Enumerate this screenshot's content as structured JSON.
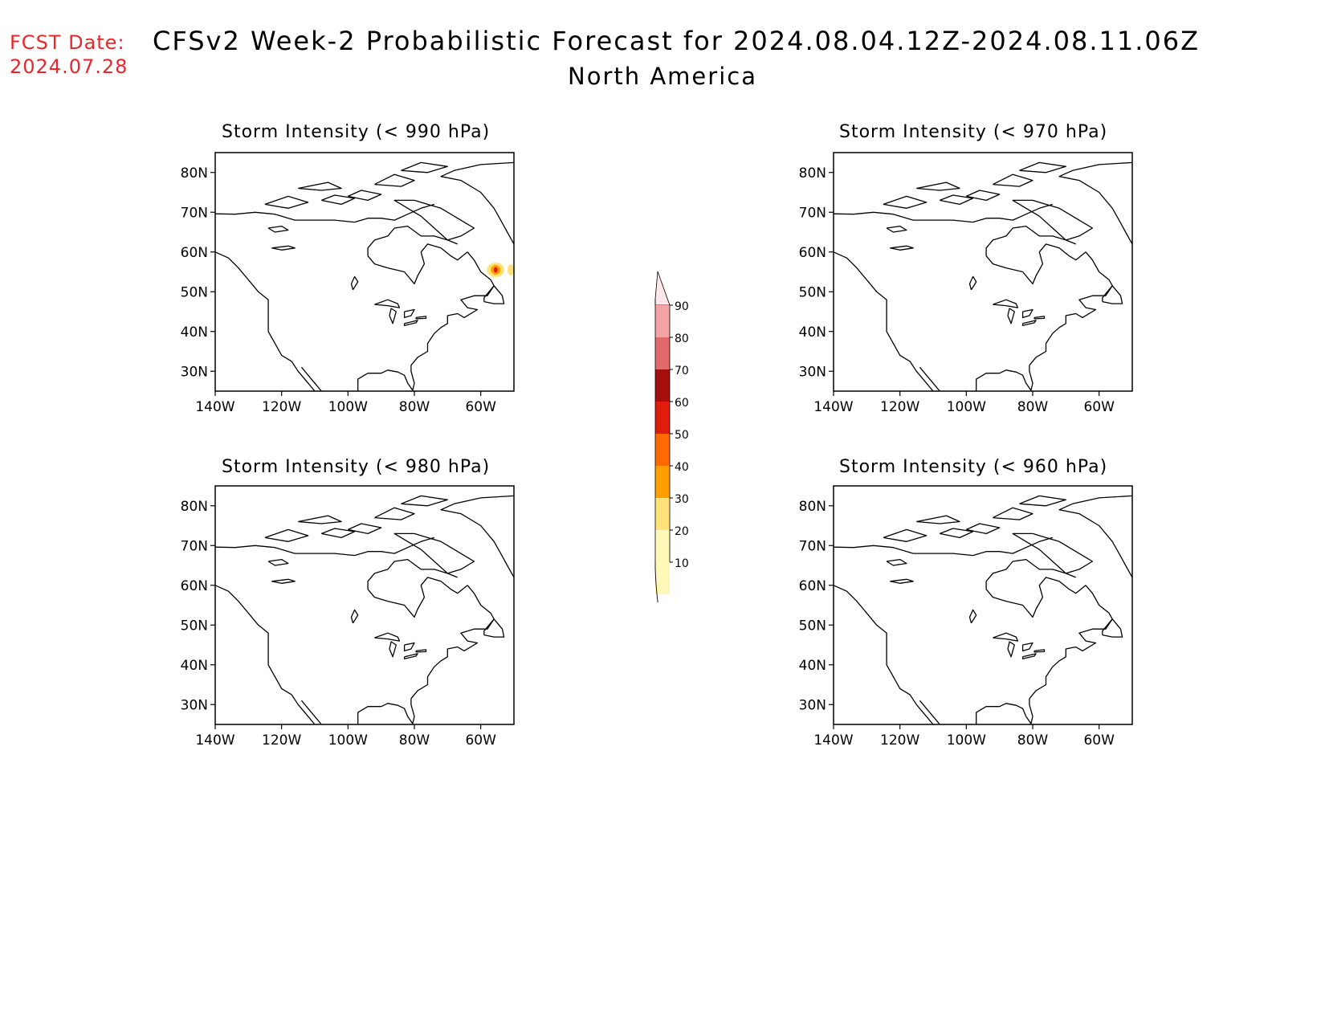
{
  "header": {
    "fcst_label": "FCST Date:",
    "fcst_date": "2024.07.28",
    "title": "CFSv2 Week-2 Probabilistic Forecast for 2024.08.04.12Z-2024.08.11.06Z",
    "subtitle": "North America"
  },
  "axes": {
    "lat_labels": [
      "80N",
      "70N",
      "60N",
      "50N",
      "40N",
      "30N"
    ],
    "lon_labels": [
      "140W",
      "120W",
      "100W",
      "80W",
      "60W"
    ]
  },
  "panels": [
    {
      "id": "p990",
      "title": "Storm Intensity (< 990 hPa)",
      "has_signal": true
    },
    {
      "id": "p970",
      "title": "Storm Intensity (< 970 hPa)",
      "has_signal": false
    },
    {
      "id": "p980",
      "title": "Storm Intensity (< 980 hPa)",
      "has_signal": false
    },
    {
      "id": "p960",
      "title": "Storm Intensity (< 960 hPa)",
      "has_signal": false
    }
  ],
  "colorbar": {
    "labels": [
      "90",
      "80",
      "70",
      "60",
      "50",
      "40",
      "30",
      "20",
      "10"
    ],
    "colors": [
      "#fde7e8",
      "#f3a3a3",
      "#e06a69",
      "#a50f0c",
      "#e01d0a",
      "#ff6a00",
      "#ffa000",
      "#ffe37a",
      "#fff7b8"
    ]
  }
}
